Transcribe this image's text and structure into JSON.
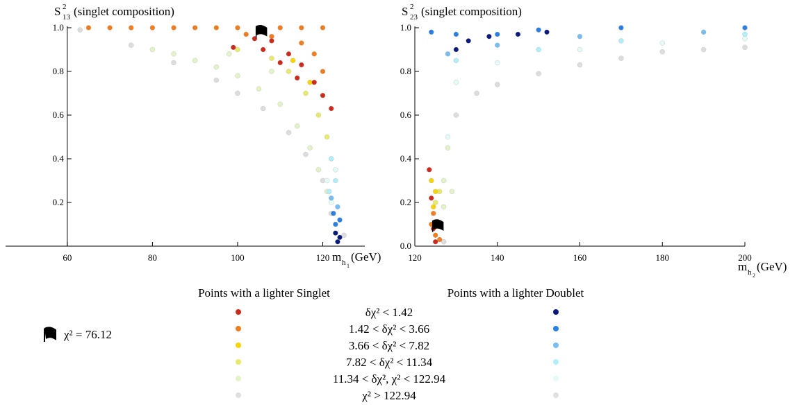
{
  "chart_data": [
    {
      "type": "scatter",
      "y_label": {
        "symbol": "S",
        "sup": "2",
        "sub": "13",
        "text": "(singlet composition)"
      },
      "x_label": {
        "symbol": "m",
        "sub": "h",
        "subsub": "1",
        "unit": "(GeV)"
      },
      "xlim": [
        45.5,
        128
      ],
      "ylim": [
        0,
        1
      ],
      "axis_origin": [
        60,
        0
      ],
      "xticks": [
        60,
        80,
        100,
        120
      ],
      "yticks": [
        0.2,
        0.4,
        0.6,
        0.8,
        {
          "value": 1,
          "label": "1.0"
        }
      ],
      "series": [
        {
          "color": "#dddddd",
          "x": [
            63,
            75,
            85,
            95,
            100,
            106,
            112,
            116,
            120,
            122,
            125
          ],
          "y": [
            0.99,
            0.92,
            0.84,
            0.76,
            0.7,
            0.63,
            0.52,
            0.42,
            0.3,
            0.15,
            0.05
          ]
        },
        {
          "color": "#e2f3c8",
          "x": [
            80,
            85,
            90,
            95,
            98,
            100,
            105,
            108,
            110,
            114,
            117,
            119,
            121
          ],
          "y": [
            0.9,
            0.88,
            0.85,
            0.82,
            0.88,
            0.78,
            0.72,
            0.8,
            0.65,
            0.55,
            0.45,
            0.35,
            0.25
          ]
        },
        {
          "color": "#e8ea6a",
          "x": [
            100,
            108,
            112,
            116,
            119,
            121
          ],
          "y": [
            0.9,
            0.86,
            0.8,
            0.7,
            0.6,
            0.5
          ]
        },
        {
          "color": "#f5d400",
          "x": [
            113,
            117
          ],
          "y": [
            0.85,
            0.75
          ]
        },
        {
          "color": "#f07e1e",
          "x": [
            65,
            70,
            75,
            80,
            85,
            90,
            95,
            100,
            110,
            115,
            120,
            102,
            108,
            115,
            118,
            120
          ],
          "y": [
            1,
            1,
            1,
            1,
            1,
            1,
            1,
            1,
            1,
            1,
            1,
            0.97,
            0.96,
            0.93,
            0.88,
            0.8
          ]
        },
        {
          "color": "#cc2a1c",
          "x": [
            99,
            104,
            108,
            112,
            115,
            118,
            120,
            122,
            106,
            110,
            114
          ],
          "y": [
            0.91,
            0.95,
            0.94,
            0.88,
            0.83,
            0.75,
            0.69,
            0.63,
            0.9,
            0.84,
            0.77
          ]
        },
        {
          "color": "#e4fbf8",
          "x": [
            121,
            123,
            122
          ],
          "y": [
            0.3,
            0.35,
            0.2
          ]
        },
        {
          "color": "#b0eefa",
          "x": [
            122,
            123,
            121.5
          ],
          "y": [
            0.4,
            0.3,
            0.25
          ]
        },
        {
          "color": "#78bdf0",
          "x": [
            122,
            123.5
          ],
          "y": [
            0.22,
            0.18
          ]
        },
        {
          "color": "#2a80e0",
          "x": [
            122.5,
            124,
            123
          ],
          "y": [
            0.15,
            0.12,
            0.1
          ]
        },
        {
          "color": "#0a1a7a",
          "x": [
            123,
            124,
            123.5
          ],
          "y": [
            0.06,
            0.04,
            0.02
          ]
        }
      ],
      "best_fit": {
        "x": 105.5,
        "y": 0.98
      }
    },
    {
      "type": "scatter",
      "y_label": {
        "symbol": "S",
        "sup": "2",
        "sub": "23",
        "text": "(singlet composition)"
      },
      "x_label": {
        "symbol": "m",
        "sub": "h",
        "subsub": "2",
        "unit": "(GeV)"
      },
      "xlim": [
        120,
        200
      ],
      "ylim": [
        0,
        1
      ],
      "axis_origin": [
        120,
        0
      ],
      "xticks": [
        120,
        140,
        160,
        180,
        200
      ],
      "yticks": [
        {
          "value": 0,
          "label": "0.0"
        },
        0.2,
        0.4,
        0.6,
        0.8,
        {
          "value": 1,
          "label": "1.0"
        }
      ],
      "series": [
        {
          "color": "#dddddd",
          "x": [
            130,
            135,
            140,
            150,
            160,
            170,
            180,
            190,
            200,
            127
          ],
          "y": [
            0.6,
            0.7,
            0.74,
            0.79,
            0.83,
            0.86,
            0.89,
            0.9,
            0.91,
            0.02
          ]
        },
        {
          "color": "#e4fbf8",
          "x": [
            128,
            130,
            140,
            160,
            180,
            200
          ],
          "y": [
            0.5,
            0.75,
            0.84,
            0.9,
            0.93,
            0.95
          ]
        },
        {
          "color": "#b0eefa",
          "x": [
            130,
            150,
            170,
            200
          ],
          "y": [
            0.85,
            0.9,
            0.94,
            0.97
          ]
        },
        {
          "color": "#78bdf0",
          "x": [
            128,
            140,
            160,
            190
          ],
          "y": [
            0.88,
            0.92,
            0.96,
            0.98
          ]
        },
        {
          "color": "#2a80e0",
          "x": [
            124,
            130,
            140,
            150,
            170,
            200
          ],
          "y": [
            0.98,
            0.97,
            0.97,
            0.99,
            1,
            1
          ]
        },
        {
          "color": "#0a1a7a",
          "x": [
            130,
            133,
            138,
            145,
            152
          ],
          "y": [
            0.9,
            0.94,
            0.96,
            0.97,
            0.98
          ]
        },
        {
          "color": "#e2f3c8",
          "x": [
            126,
            127,
            128,
            129,
            127
          ],
          "y": [
            0.1,
            0.3,
            0.45,
            0.25,
            0.18
          ]
        },
        {
          "color": "#e8ea6a",
          "x": [
            125,
            126
          ],
          "y": [
            0.2,
            0.25
          ]
        },
        {
          "color": "#f5d400",
          "x": [
            124,
            125,
            124.5
          ],
          "y": [
            0.3,
            0.25,
            0.18
          ]
        },
        {
          "color": "#f07e1e",
          "x": [
            124,
            125,
            126,
            124.5
          ],
          "y": [
            0.1,
            0.05,
            0.03,
            0.15
          ]
        },
        {
          "color": "#cc2a1c",
          "x": [
            123.5,
            124,
            124.5,
            125
          ],
          "y": [
            0.35,
            0.22,
            0.08,
            0.02
          ]
        }
      ],
      "best_fit": {
        "x": 125.5,
        "y": 0.09
      }
    }
  ],
  "legend": {
    "singlet_title": "Points with a lighter Singlet",
    "doublet_title": "Points with a lighter Doublet",
    "rows": [
      {
        "label": "δχ² < 1.42",
        "singlet_color": "#cc2a1c",
        "doublet_color": "#0a1a7a"
      },
      {
        "label": "1.42 < δχ² < 3.66",
        "singlet_color": "#f07e1e",
        "doublet_color": "#2a80e0"
      },
      {
        "label": "3.66 < δχ² < 7.82",
        "singlet_color": "#f5d400",
        "doublet_color": "#78bdf0"
      },
      {
        "label": "7.82 < δχ² < 11.34",
        "singlet_color": "#e8ea6a",
        "doublet_color": "#b0eefa"
      },
      {
        "label": "11.34 < δχ², χ² < 122.94",
        "singlet_color": "#e2f3c8",
        "doublet_color": "#e4fbf8"
      },
      {
        "label": "χ² > 122.94",
        "singlet_color": "#e0e0e0",
        "doublet_color": "#e0e0e0"
      }
    ],
    "best_fit_label": "χ² = 76.12"
  }
}
